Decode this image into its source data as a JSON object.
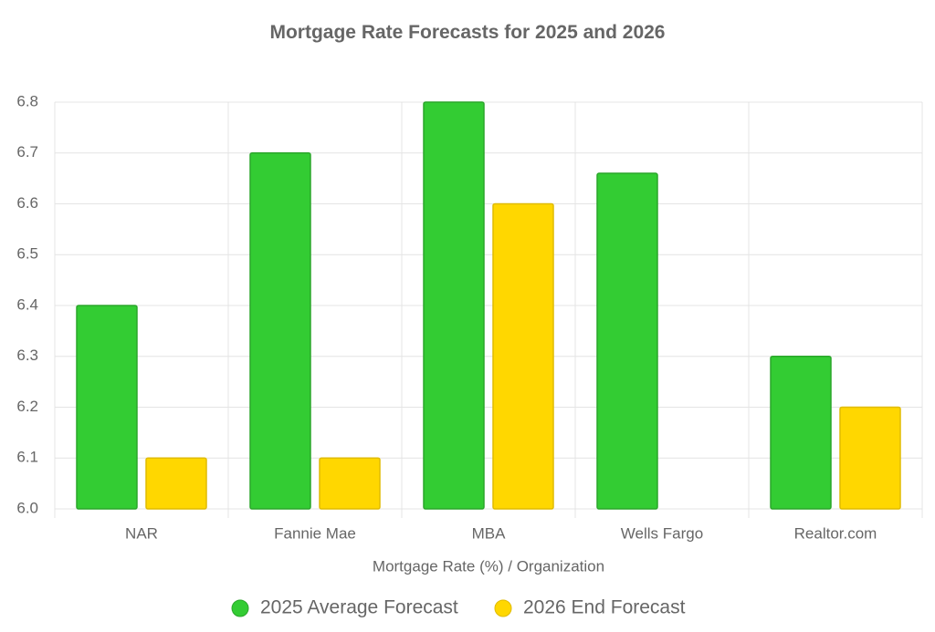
{
  "chart_data": {
    "type": "bar",
    "title": "Mortgage Rate Forecasts for 2025 and 2026",
    "x_label": "Mortgage Rate (%) / Organization",
    "categories": [
      "NAR",
      "Fannie Mae",
      "MBA",
      "Wells Fargo",
      "Realtor.com"
    ],
    "series": [
      {
        "name": "2025 Average Forecast",
        "color": "#33cc33",
        "values": [
          6.4,
          6.7,
          6.8,
          6.66,
          6.3
        ]
      },
      {
        "name": "2026 End Forecast",
        "color": "#ffd700",
        "values": [
          6.1,
          6.1,
          6.6,
          null,
          6.2
        ]
      }
    ],
    "ylim": [
      6.0,
      6.8
    ],
    "yticks": [
      {
        "value": 6.0,
        "label": "6.0"
      },
      6.1,
      6.2,
      6.3,
      6.4,
      6.5,
      6.6,
      6.7,
      6.8
    ],
    "grid": true,
    "legend": "bottom"
  }
}
